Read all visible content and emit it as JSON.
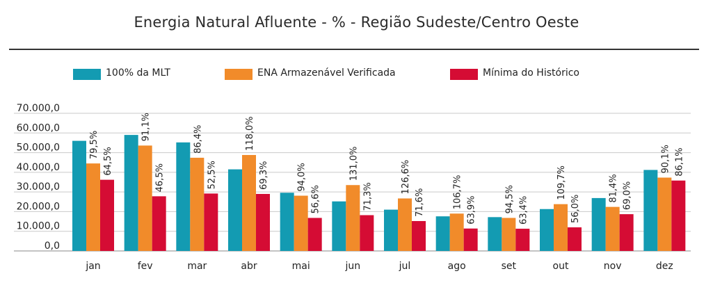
{
  "title": "Energia Natural Afluente - % - Região Sudeste/Centro Oeste",
  "colors": {
    "mlt": "#139bb2",
    "ena": "#f18b2a",
    "min": "#d50c34",
    "grid": "#c9c9c9",
    "axis": "#888888"
  },
  "legend": [
    {
      "label": "100% da MLT",
      "color": "#139bb2"
    },
    {
      "label": "ENA Armazenável Verificada",
      "color": "#f18b2a"
    },
    {
      "label": "Mínima do Histórico",
      "color": "#d50c34"
    }
  ],
  "chart_data": {
    "type": "bar",
    "categories": [
      "jan",
      "fev",
      "mar",
      "abr",
      "mai",
      "jun",
      "jul",
      "ago",
      "set",
      "out",
      "nov",
      "dez"
    ],
    "series": [
      {
        "name": "100% da MLT",
        "values": [
          56000,
          59000,
          55200,
          41500,
          29600,
          25200,
          21000,
          17600,
          17200,
          21300,
          26900,
          41200
        ]
      },
      {
        "name": "ENA Armazenável Verificada",
        "values": [
          44500,
          53600,
          47400,
          48800,
          28100,
          33500,
          26700,
          19000,
          16800,
          23800,
          22400,
          37300
        ],
        "labels": [
          "79,5%",
          "91,1%",
          "86,4%",
          "118,0%",
          "94,0%",
          "131,0%",
          "126,6%",
          "106,7%",
          "94,5%",
          "109,7%",
          "81,4%",
          "90,1%"
        ]
      },
      {
        "name": "Mínima do Histórico",
        "values": [
          36200,
          27800,
          29200,
          29000,
          16800,
          18200,
          15200,
          11400,
          11300,
          12000,
          18700,
          35800
        ],
        "labels": [
          "64,5%",
          "46,5%",
          "52,5%",
          "69,3%",
          "56,6%",
          "71,3%",
          "71,6%",
          "63,9%",
          "63,4%",
          "56,0%",
          "69,0%",
          "86,1%"
        ]
      }
    ],
    "yticks": [
      "0,0",
      "10.000,0",
      "20.000,0",
      "30.000,0",
      "40.000,0",
      "50.000,0",
      "60.000,0",
      "70.000,0"
    ],
    "ylim": [
      0,
      70000
    ],
    "grid": true,
    "legend_position": "top"
  }
}
